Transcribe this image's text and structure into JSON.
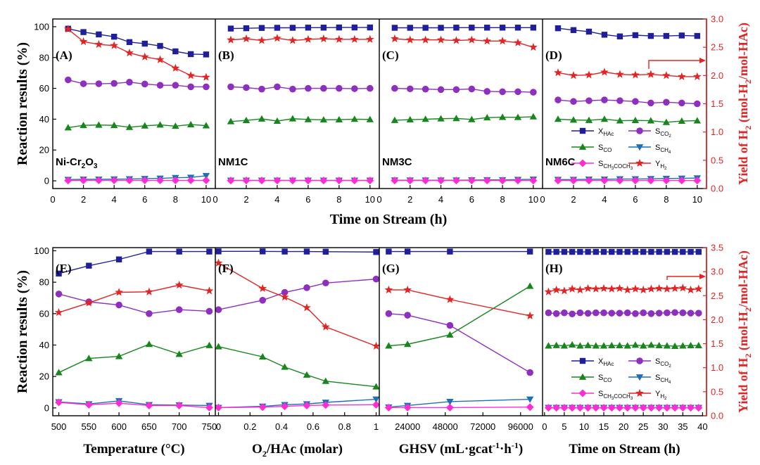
{
  "colors": {
    "X_HAc": "#1f1f9a",
    "S_CO2": "#8e2fbf",
    "S_CO": "#17861c",
    "S_CH4": "#1f6fb8",
    "S_CH3COCH3": "#ff2bd4",
    "Y_H2": "#e32424",
    "right_axis": "#e32424",
    "left_axis": "#000000"
  },
  "legend": {
    "X_HAc": {
      "main": "X",
      "sub": "HAc"
    },
    "S_CO2": {
      "main": "S",
      "sub": "CO",
      "subsub": "2"
    },
    "S_CO": {
      "main": "S",
      "sub": "CO"
    },
    "S_CH4": {
      "main": "S",
      "sub": "CH",
      "subsub": "4"
    },
    "S_CH3COCH3": {
      "main": "S",
      "sub": "CH",
      "subsub": "3",
      "sub2": "COCH",
      "subsub2": "3"
    },
    "Y_H2": {
      "main": "Y",
      "sub": "H",
      "subsub": "2"
    }
  },
  "top_row": {
    "y_left_label": "Reaction results (%)",
    "y_right_label": {
      "pre": "Yield of H",
      "sub": "2",
      "post": " (mol-H",
      "sub2": "2",
      "post2": "/mol-HAc)"
    },
    "x_label": "Time on Stream (h)",
    "y_left_ticks": [
      "0",
      "20",
      "40",
      "60",
      "80",
      "100"
    ],
    "y_right_ticks": [
      "0.0",
      "0.5",
      "1.0",
      "1.5",
      "2.0",
      "2.5",
      "3.0"
    ],
    "x_ticks": [
      "0",
      "2",
      "4",
      "6",
      "8",
      "10"
    ]
  },
  "bottom_row": {
    "y_left_label": "Reaction results (%)",
    "y_right_label": {
      "pre": "Yield of H",
      "sub": "2",
      "post": " (mol-H",
      "sub2": "2",
      "post2": "/mol-HAc)"
    },
    "y_left_ticks": [
      "0",
      "20",
      "40",
      "60",
      "80",
      "100"
    ],
    "y_right_ticks": [
      "0.0",
      "0.5",
      "1.0",
      "1.5",
      "2.0",
      "2.5",
      "3.0",
      "3.5"
    ]
  },
  "chart_data": [
    {
      "type": "line",
      "panel": "A",
      "row": "top",
      "catalyst": {
        "main": "Ni-Cr",
        "sub": "2",
        "main2": "O",
        "sub2": "3"
      },
      "x": [
        1,
        2,
        3,
        4,
        5,
        6,
        7,
        8,
        9,
        10
      ],
      "xlim": [
        0,
        10.6
      ],
      "ylim": [
        -5,
        105
      ],
      "y2lim": [
        0,
        3.0
      ],
      "series": [
        {
          "key": "X_HAc",
          "values": [
            98.7,
            96.5,
            95.0,
            93.5,
            90.0,
            89.0,
            87.5,
            84.0,
            82.2,
            82.0
          ]
        },
        {
          "key": "S_CO2",
          "values": [
            65.5,
            63.0,
            63.0,
            63.2,
            64.0,
            62.8,
            62.0,
            62.0,
            61.0,
            61.0
          ]
        },
        {
          "key": "S_CO",
          "values": [
            34.5,
            36.0,
            36.2,
            36.0,
            34.8,
            35.7,
            36.3,
            35.5,
            36.5,
            35.8
          ]
        },
        {
          "key": "S_CH4",
          "values": [
            0.8,
            1.0,
            1.0,
            1.1,
            1.2,
            1.4,
            1.6,
            2.0,
            2.2,
            3.3
          ]
        },
        {
          "key": "S_CH3COCH3",
          "values": [
            0.2,
            0.3,
            0.3,
            0.3,
            0.3,
            0.3,
            0.3,
            0.3,
            0.3,
            0.3
          ]
        },
        {
          "key": "Y_H2",
          "axis": "right",
          "values": [
            2.82,
            2.6,
            2.55,
            2.53,
            2.4,
            2.33,
            2.28,
            2.13,
            2.0,
            1.97
          ]
        }
      ]
    },
    {
      "type": "line",
      "panel": "B",
      "row": "top",
      "catalyst": {
        "main": "NM1C"
      },
      "x": [
        1,
        2,
        3,
        4,
        5,
        6,
        7,
        8,
        9,
        10
      ],
      "xlim": [
        0,
        10.6
      ],
      "ylim": [
        -5,
        105
      ],
      "y2lim": [
        0,
        3.0
      ],
      "series": [
        {
          "key": "X_HAc",
          "values": [
            98.8,
            99.0,
            99.2,
            99.3,
            99.3,
            99.4,
            99.4,
            99.5,
            99.5,
            99.5
          ]
        },
        {
          "key": "S_CO2",
          "values": [
            61.0,
            60.5,
            59.5,
            61.0,
            59.5,
            60.0,
            60.0,
            60.0,
            59.8,
            60.0
          ]
        },
        {
          "key": "S_CO",
          "values": [
            38.5,
            39.2,
            40.2,
            38.8,
            40.3,
            39.8,
            39.6,
            39.7,
            40.0,
            39.8
          ]
        },
        {
          "key": "S_CH4",
          "values": [
            0.3,
            0.3,
            0.3,
            0.3,
            0.3,
            0.3,
            0.3,
            0.3,
            0.3,
            0.3
          ]
        },
        {
          "key": "S_CH3COCH3",
          "values": [
            0.2,
            0.2,
            0.2,
            0.2,
            0.2,
            0.2,
            0.2,
            0.2,
            0.2,
            0.2
          ]
        },
        {
          "key": "Y_H2",
          "axis": "right",
          "values": [
            2.63,
            2.65,
            2.62,
            2.66,
            2.62,
            2.64,
            2.65,
            2.64,
            2.64,
            2.64
          ]
        }
      ]
    },
    {
      "type": "line",
      "panel": "C",
      "row": "top",
      "catalyst": {
        "main": "NM3C"
      },
      "x": [
        1,
        2,
        3,
        4,
        5,
        6,
        7,
        8,
        9,
        10
      ],
      "xlim": [
        0,
        10.6
      ],
      "ylim": [
        -5,
        105
      ],
      "y2lim": [
        0,
        3.0
      ],
      "series": [
        {
          "key": "X_HAc",
          "values": [
            99.3,
            99.3,
            99.3,
            99.3,
            99.4,
            99.4,
            99.4,
            99.4,
            99.4,
            99.4
          ]
        },
        {
          "key": "S_CO2",
          "values": [
            60.0,
            59.7,
            59.5,
            59.2,
            59.2,
            59.6,
            58.0,
            57.8,
            57.8,
            57.5
          ]
        },
        {
          "key": "S_CO",
          "values": [
            39.3,
            39.7,
            40.0,
            40.3,
            40.5,
            39.8,
            41.0,
            41.3,
            41.2,
            41.6
          ]
        },
        {
          "key": "S_CH4",
          "values": [
            0.4,
            0.4,
            0.4,
            0.4,
            0.4,
            0.5,
            0.6,
            0.6,
            0.8,
            1.0
          ]
        },
        {
          "key": "S_CH3COCH3",
          "values": [
            0.2,
            0.2,
            0.2,
            0.2,
            0.2,
            0.2,
            0.2,
            0.2,
            0.2,
            0.2
          ]
        },
        {
          "key": "Y_H2",
          "axis": "right",
          "values": [
            2.65,
            2.63,
            2.63,
            2.63,
            2.62,
            2.63,
            2.61,
            2.61,
            2.58,
            2.5
          ]
        }
      ]
    },
    {
      "type": "line",
      "panel": "D",
      "row": "top",
      "catalyst": {
        "main": "NM6C"
      },
      "x": [
        1,
        2,
        3,
        4,
        5,
        6,
        7,
        8,
        9,
        10
      ],
      "xlim": [
        0,
        10.6
      ],
      "ylim": [
        -5,
        105
      ],
      "y2lim": [
        0,
        3.0
      ],
      "series": [
        {
          "key": "X_HAc",
          "values": [
            99.0,
            97.8,
            96.8,
            94.8,
            93.7,
            94.5,
            94.0,
            94.0,
            94.3,
            94.0
          ]
        },
        {
          "key": "S_CO2",
          "values": [
            52.5,
            51.5,
            52.0,
            52.5,
            52.0,
            51.5,
            50.5,
            51.0,
            50.5,
            50.0
          ]
        },
        {
          "key": "S_CO",
          "values": [
            40.0,
            39.5,
            39.3,
            40.0,
            39.0,
            39.2,
            39.0,
            38.0,
            38.8,
            39.0
          ]
        },
        {
          "key": "S_CH4",
          "values": [
            0.8,
            0.8,
            1.0,
            1.0,
            1.2,
            1.2,
            1.3,
            1.5,
            1.6,
            1.8
          ]
        },
        {
          "key": "S_CH3COCH3",
          "values": [
            0.2,
            0.2,
            0.2,
            0.2,
            0.2,
            0.2,
            0.2,
            0.2,
            0.2,
            0.2
          ]
        },
        {
          "key": "Y_H2",
          "axis": "right",
          "values": [
            2.05,
            2.0,
            2.01,
            2.06,
            2.02,
            2.01,
            2.02,
            2.0,
            1.98,
            1.98
          ]
        }
      ]
    },
    {
      "type": "line",
      "panel": "E",
      "row": "bottom",
      "x_label": {
        "main": "Temperature (°C)"
      },
      "x_ticks": [
        "500",
        "550",
        "600",
        "650",
        "700",
        "750"
      ],
      "x_tick_values": [
        500,
        550,
        600,
        650,
        700,
        750
      ],
      "x": [
        500,
        550,
        600,
        650,
        700,
        750
      ],
      "xlim": [
        490,
        760
      ],
      "ylim": [
        -5,
        102
      ],
      "y2lim": [
        0,
        3.5
      ],
      "series": [
        {
          "key": "X_HAc",
          "values": [
            85.5,
            90.5,
            94.5,
            99.5,
            99.5,
            99.5
          ]
        },
        {
          "key": "S_CO2",
          "values": [
            72.5,
            67.5,
            65.5,
            60.0,
            62.5,
            61.5
          ]
        },
        {
          "key": "S_CO",
          "values": [
            22.5,
            31.5,
            32.8,
            40.5,
            34.2,
            39.8
          ]
        },
        {
          "key": "S_CH4",
          "values": [
            3.8,
            2.5,
            4.5,
            2.0,
            1.8,
            1.5
          ]
        },
        {
          "key": "S_CH3COCH3",
          "values": [
            3.5,
            2.0,
            3.0,
            1.5,
            1.5,
            0.2
          ]
        },
        {
          "key": "Y_H2",
          "axis": "right",
          "values": [
            2.15,
            2.35,
            2.57,
            2.58,
            2.72,
            2.6
          ]
        }
      ]
    },
    {
      "type": "line",
      "panel": "F",
      "row": "bottom",
      "x_label": {
        "main": "O",
        "sub": "2",
        "main2": "/HAc (molar)"
      },
      "x_ticks": [
        "0",
        "0.2",
        "0.4",
        "0.6",
        "0.8",
        "1"
      ],
      "x_tick_values": [
        0,
        0.2,
        0.4,
        0.6,
        0.8,
        1.0
      ],
      "x": [
        0,
        0.28,
        0.42,
        0.56,
        0.68,
        1.0
      ],
      "xlim": [
        -0.02,
        1.02
      ],
      "ylim": [
        -5,
        102
      ],
      "y2lim": [
        0,
        3.5
      ],
      "series": [
        {
          "key": "X_HAc",
          "values": [
            99.6,
            99.6,
            99.5,
            99.5,
            99.4,
            99.2
          ]
        },
        {
          "key": "S_CO2",
          "values": [
            62.5,
            68.5,
            73.5,
            76.5,
            79.5,
            82.0
          ]
        },
        {
          "key": "S_CO",
          "values": [
            39.0,
            32.5,
            26.0,
            21.0,
            17.0,
            13.5
          ]
        },
        {
          "key": "S_CH4",
          "values": [
            0.2,
            1.0,
            2.0,
            2.5,
            3.5,
            5.5
          ]
        },
        {
          "key": "S_CH3COCH3",
          "values": [
            0.2,
            0.5,
            1.0,
            1.5,
            1.8,
            2.0
          ]
        },
        {
          "key": "Y_H2",
          "axis": "right",
          "values": [
            3.18,
            2.65,
            2.47,
            2.25,
            1.85,
            1.45
          ]
        }
      ]
    },
    {
      "type": "line",
      "panel": "G",
      "row": "bottom",
      "x_label": {
        "main": "GHSV (mL·gcat",
        "sup": "-1",
        "main2": "·h",
        "sup2": "-1",
        "main3": ")"
      },
      "x_ticks": [
        "24000",
        "48000",
        "72000",
        "96000"
      ],
      "x_tick_values": [
        24000,
        48000,
        72000,
        96000
      ],
      "x": [
        12000,
        24000,
        51000,
        102000
      ],
      "xlim": [
        6000,
        110000
      ],
      "ylim": [
        -5,
        102
      ],
      "y2lim": [
        0,
        3.5
      ],
      "series": [
        {
          "key": "X_HAc",
          "values": [
            99.5,
            99.5,
            99.5,
            99.5
          ]
        },
        {
          "key": "S_CO2",
          "values": [
            60.0,
            59.0,
            52.5,
            22.5
          ]
        },
        {
          "key": "S_CO",
          "values": [
            39.5,
            40.5,
            46.5,
            77.5
          ]
        },
        {
          "key": "S_CH4",
          "values": [
            0.5,
            1.5,
            4.0,
            5.5
          ]
        },
        {
          "key": "S_CH3COCH3",
          "values": [
            0.2,
            0.2,
            0.2,
            0.5
          ]
        },
        {
          "key": "Y_H2",
          "axis": "right",
          "values": [
            2.62,
            2.62,
            2.42,
            2.08
          ]
        }
      ]
    },
    {
      "type": "line",
      "panel": "H",
      "row": "bottom",
      "x_label": {
        "main": "Time on Stream (h)"
      },
      "x_ticks": [
        "0",
        "5",
        "10",
        "15",
        "20",
        "25",
        "30",
        "35",
        "40"
      ],
      "x_tick_values": [
        0,
        5,
        10,
        15,
        20,
        25,
        30,
        35,
        40
      ],
      "x": [
        1,
        3,
        5,
        7,
        9,
        11,
        13,
        15,
        17,
        19,
        21,
        23,
        25,
        27,
        29,
        31,
        33,
        35,
        37,
        39
      ],
      "xlim": [
        -0.5,
        41
      ],
      "ylim": [
        -5,
        102
      ],
      "y2lim": [
        0,
        3.5
      ],
      "series": [
        {
          "key": "X_HAc",
          "values": [
            99.3,
            99.3,
            99.3,
            99.3,
            99.3,
            99.3,
            99.3,
            99.3,
            99.3,
            99.3,
            99.3,
            99.3,
            99.3,
            99.3,
            99.3,
            99.3,
            99.3,
            99.3,
            99.3,
            99.3
          ]
        },
        {
          "key": "S_CO2",
          "values": [
            60.5,
            60.0,
            60.5,
            59.8,
            60.5,
            60.2,
            60.5,
            60.5,
            60.3,
            60.3,
            60.5,
            60.0,
            60.5,
            60.0,
            60.3,
            60.5,
            60.7,
            60.5,
            60.3,
            60.3
          ]
        },
        {
          "key": "S_CO",
          "values": [
            39.5,
            39.8,
            39.5,
            40.2,
            39.5,
            39.8,
            39.5,
            39.5,
            39.7,
            39.7,
            39.5,
            40.0,
            39.5,
            40.0,
            39.7,
            39.5,
            39.3,
            39.5,
            39.7,
            39.7
          ]
        },
        {
          "key": "S_CH4",
          "values": [
            0.2,
            0.2,
            0.2,
            0.2,
            0.2,
            0.2,
            0.2,
            0.2,
            0.2,
            0.2,
            0.2,
            0.2,
            0.2,
            0.2,
            0.2,
            0.2,
            0.2,
            0.2,
            0.2,
            0.2
          ]
        },
        {
          "key": "S_CH3COCH3",
          "values": [
            0.1,
            0.1,
            0.1,
            0.1,
            0.1,
            0.1,
            0.1,
            0.1,
            0.1,
            0.1,
            0.1,
            0.1,
            0.1,
            0.1,
            0.1,
            0.1,
            0.1,
            0.1,
            0.1,
            0.1
          ]
        },
        {
          "key": "Y_H2",
          "axis": "right",
          "values": [
            2.58,
            2.62,
            2.6,
            2.64,
            2.62,
            2.65,
            2.64,
            2.65,
            2.64,
            2.65,
            2.62,
            2.64,
            2.62,
            2.64,
            2.65,
            2.64,
            2.65,
            2.66,
            2.62,
            2.64
          ]
        }
      ]
    }
  ]
}
